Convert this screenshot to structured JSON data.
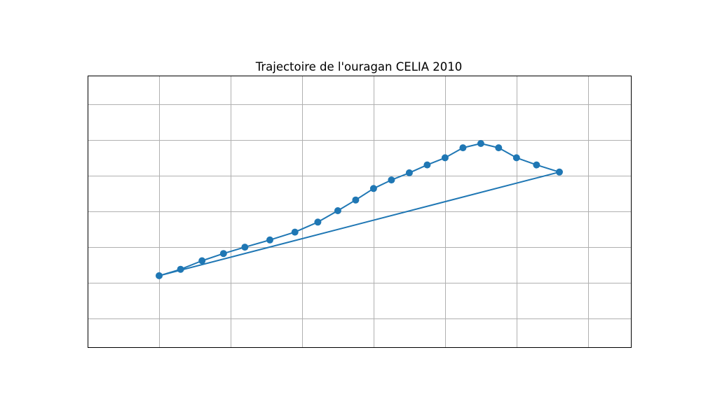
{
  "chart_data": {
    "type": "line",
    "title": "Trajectoire de l'ouragan CELIA 2010",
    "xlabel": "",
    "ylabel": "",
    "xlim": [
      0,
      7.6
    ],
    "ylim": [
      0,
      7.6
    ],
    "x_gridlines": [
      1,
      2,
      3,
      4,
      5,
      6,
      7
    ],
    "y_gridlines": [
      0.8,
      1.8,
      2.8,
      3.8,
      4.8,
      5.8,
      6.8
    ],
    "grid": true,
    "axis_ticks_visible": false,
    "color": "#1f77b4",
    "marker": "circle",
    "closed_path": true,
    "series": [
      {
        "x": [
          1.0,
          1.3,
          1.6,
          1.9,
          2.2,
          2.55,
          2.9,
          3.22,
          3.5,
          3.75,
          4.0,
          4.25,
          4.5,
          4.75,
          5.0,
          5.25,
          5.5,
          5.75,
          6.0,
          6.28,
          6.6
        ],
        "y": [
          2.0,
          2.18,
          2.42,
          2.62,
          2.8,
          3.0,
          3.22,
          3.5,
          3.82,
          4.12,
          4.44,
          4.68,
          4.88,
          5.1,
          5.3,
          5.58,
          5.7,
          5.58,
          5.3,
          5.1,
          4.9
        ]
      }
    ]
  }
}
